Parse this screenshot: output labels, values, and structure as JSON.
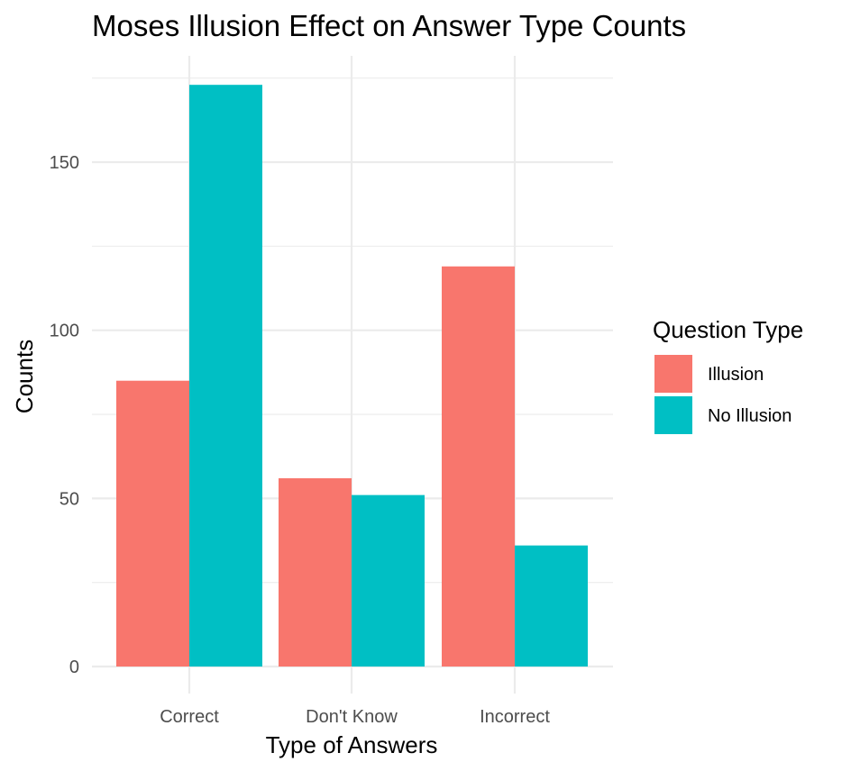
{
  "chart_data": {
    "type": "bar",
    "title": "Moses Illusion Effect on Answer Type Counts",
    "xlabel": "Type of Answers",
    "ylabel": "Counts",
    "categories": [
      "Correct",
      "Don't Know",
      "Incorrect"
    ],
    "series": [
      {
        "name": "Illusion",
        "color": "#F8766D",
        "values": [
          85,
          56,
          119
        ]
      },
      {
        "name": "No Illusion",
        "color": "#00BFC4",
        "values": [
          173,
          51,
          36
        ]
      }
    ],
    "ylim": [
      0,
      175
    ],
    "yticks": [
      0,
      50,
      100,
      150
    ],
    "grid": true,
    "legend": {
      "title": "Question Type",
      "placement": "right"
    }
  }
}
